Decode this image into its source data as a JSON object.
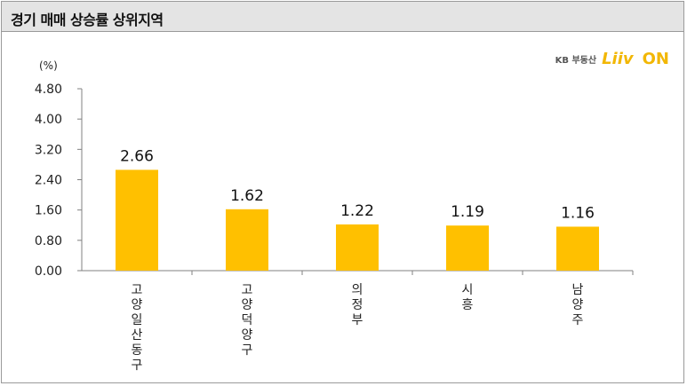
{
  "header": {
    "title": "경기 매매 상승률 상위지역"
  },
  "logo": {
    "kb_text": "KB 부동산",
    "brand_text": "Liiv",
    "brand_suffix": "ON"
  },
  "colors": {
    "bar": "#FFC000",
    "title_bg": "#E4E4E4",
    "axis": "#808080"
  },
  "chart_data": {
    "type": "bar",
    "unit_label": "(%)",
    "categories": [
      "고양일산동구",
      "고양덕양구",
      "의정부",
      "시흥",
      "남양주"
    ],
    "values": [
      2.66,
      1.62,
      1.22,
      1.19,
      1.16
    ],
    "value_labels": [
      "2.66",
      "1.62",
      "1.22",
      "1.19",
      "1.16"
    ],
    "yticks": [
      "0.00",
      "0.80",
      "1.60",
      "2.40",
      "3.20",
      "4.00",
      "4.80"
    ],
    "ylim": [
      0,
      4.8
    ],
    "grid": false,
    "legend": false
  }
}
